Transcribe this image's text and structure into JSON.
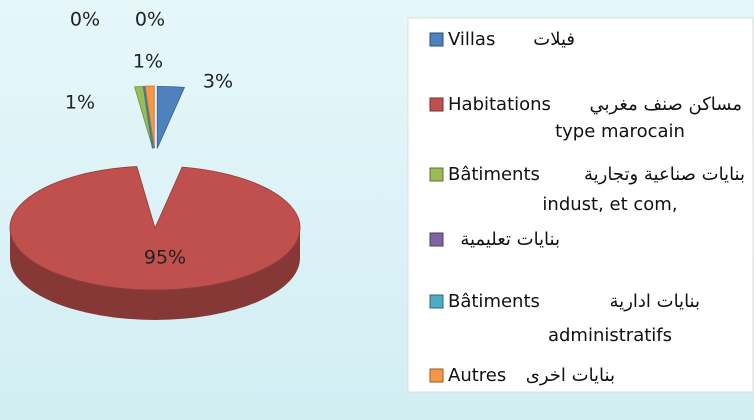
{
  "chart_data": {
    "type": "pie",
    "categories": [
      [
        "Villas",
        "فيلات"
      ],
      [
        "Habitations",
        "مساكن صنف مغربي",
        "type marocain"
      ],
      [
        "Bâtiments",
        "بنايات صناعية وتجارية",
        "indust, et com,"
      ],
      [
        "بنايات تعليمية"
      ],
      [
        "Bâtiments",
        "بنايات ادارية",
        "administratifs"
      ],
      [
        "Autres",
        "بنايات اخرى"
      ]
    ],
    "values": [
      3,
      95,
      1,
      0,
      0,
      1
    ],
    "value_labels": [
      "3%",
      "95%",
      "1%",
      "0%",
      "0%",
      "1%"
    ],
    "colors": [
      "#4f81bd",
      "#c0504d",
      "#9bbb59",
      "#8064a2",
      "#4bacc6",
      "#f79646"
    ],
    "legend": "right"
  }
}
